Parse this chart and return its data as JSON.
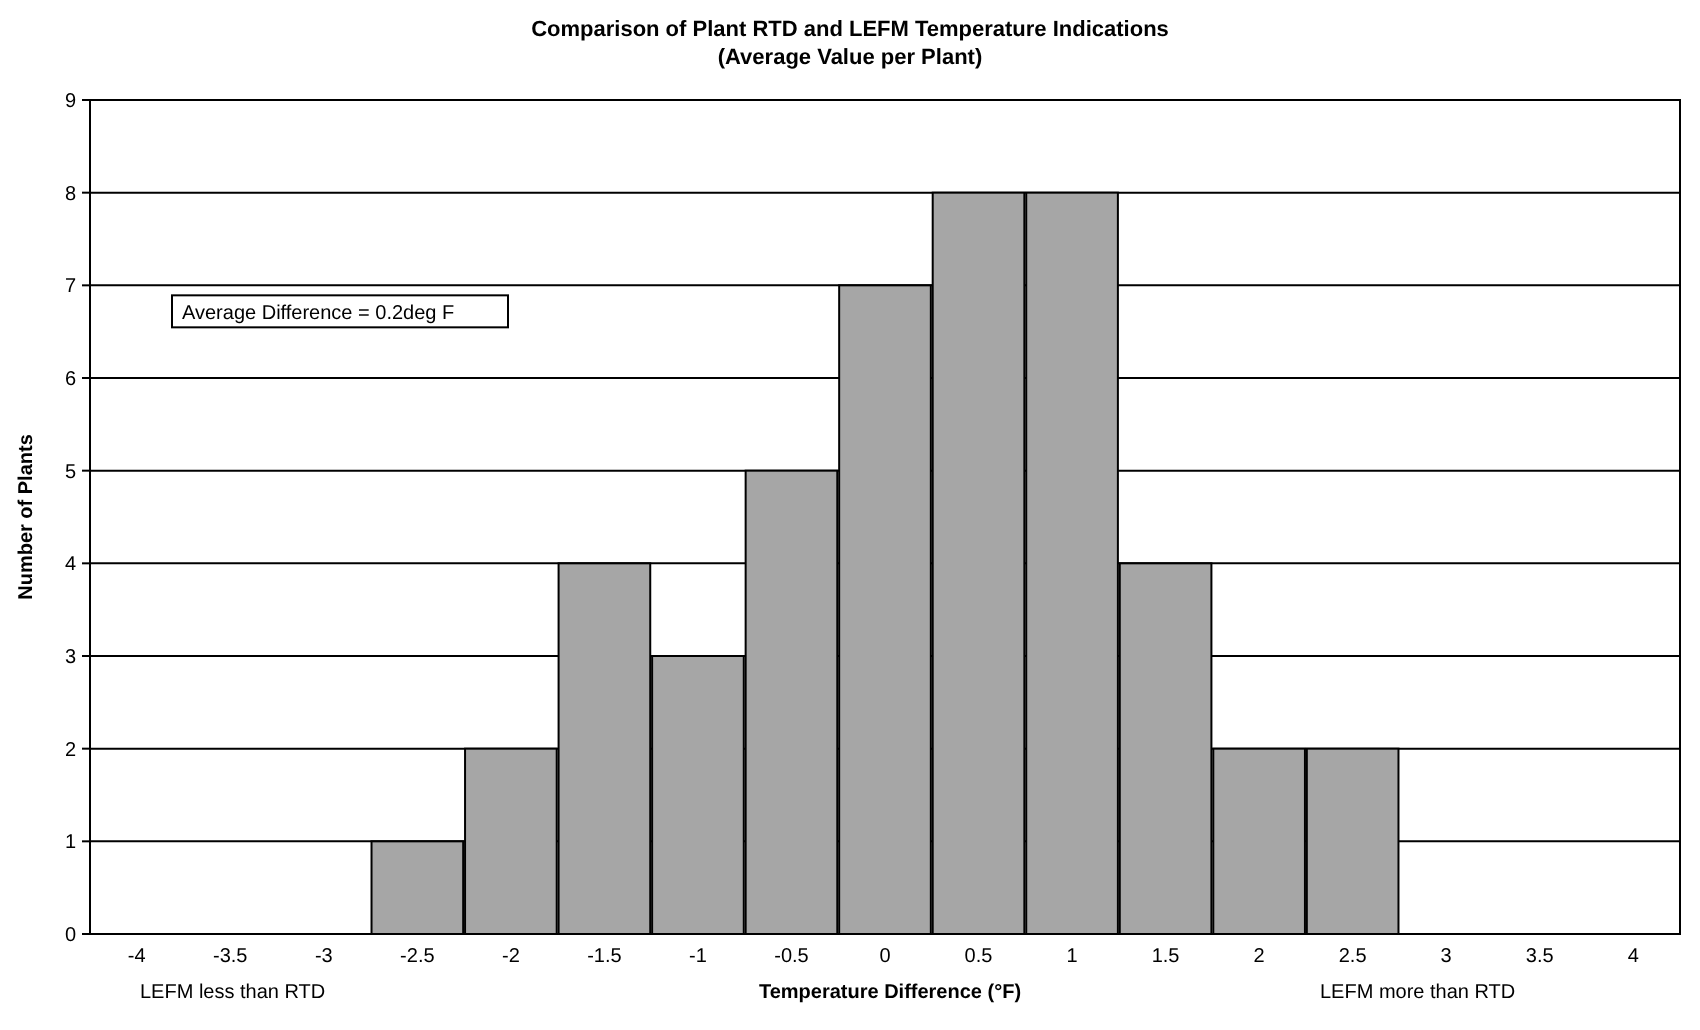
{
  "chart_data": {
    "type": "bar",
    "title": "Comparison of Plant RTD and LEFM Temperature Indications",
    "subtitle": "(Average Value per Plant)",
    "xlabel": "Temperature Difference (°F)",
    "ylabel": "Number of Plants",
    "categories": [
      "-4",
      "-3.5",
      "-3",
      "-2.5",
      "-2",
      "-1.5",
      "-1",
      "-0.5",
      "0",
      "0.5",
      "1",
      "1.5",
      "2",
      "2.5",
      "3",
      "3.5",
      "4"
    ],
    "values": [
      0,
      0,
      0,
      1,
      2,
      4,
      3,
      5,
      7,
      8,
      8,
      4,
      2,
      2,
      0,
      0,
      0
    ],
    "color": "#a6a6a6",
    "ylim": [
      0,
      9
    ],
    "yticks": [
      0,
      1,
      2,
      3,
      4,
      5,
      6,
      7,
      8,
      9
    ],
    "grid": "y",
    "annotations": [
      "Average Difference = 0.2deg F",
      "LEFM less than RTD",
      "LEFM more than  RTD"
    ]
  }
}
